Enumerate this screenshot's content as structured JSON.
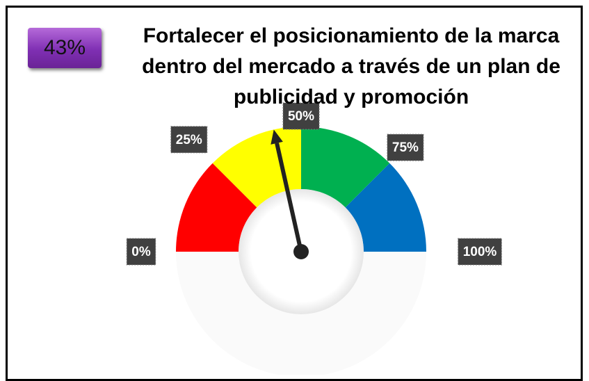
{
  "chart_data": {
    "type": "gauge",
    "title": "Fortalecer el posicionamiento de la marca dentro del mercado a través de un plan de publicidad  y promoción",
    "value": 43,
    "value_label": "43%",
    "lim": [
      0,
      100
    ],
    "bands": [
      25,
      25,
      25,
      25
    ],
    "band_colors": [
      "#ff0000",
      "#ffff00",
      "#00b050",
      "#0070c0"
    ],
    "ticks": [
      {
        "value": 0,
        "label": "0%"
      },
      {
        "value": 25,
        "label": "25%"
      },
      {
        "value": 50,
        "label": "50%"
      },
      {
        "value": 75,
        "label": "75%"
      },
      {
        "value": 100,
        "label": "100%"
      }
    ]
  }
}
